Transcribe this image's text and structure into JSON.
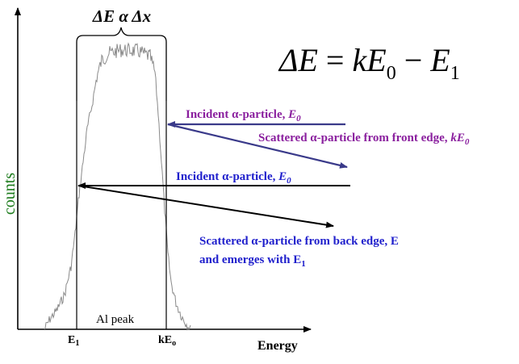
{
  "figure": {
    "bracket_label": "ΔE α Δx",
    "equation": {
      "lhs": "ΔE",
      "k": "k",
      "E": "E",
      "sub0": "0",
      "minus": "−",
      "sub1": "1"
    },
    "y_axis_label": "counts",
    "x_axis_label": "Energy",
    "peak_label": "Al peak",
    "tick_labels": {
      "e1": "E",
      "e1_sub": "1",
      "ke0": "kE",
      "ke0_sub": "o"
    },
    "annotations": {
      "incident_front": {
        "text": "Incident α-particle, ",
        "italic": "E",
        "sub": "0"
      },
      "scattered_front": {
        "text": "Scattered α-particle from front edge, ",
        "italic": "kE",
        "sub": "0"
      },
      "incident_back": {
        "text": "Incident α-particle, ",
        "italic": "E",
        "sub": "0"
      },
      "scattered_back_line1": "Scattered α-particle from back edge, E",
      "scattered_back_line2": {
        "text": "and emerges with E",
        "sub": "1"
      }
    },
    "colors": {
      "y_label": "#1a7a1a",
      "purple": "#8a1f9e",
      "blue": "#1f1fcc",
      "arrow_blue": "#3a3a8a",
      "black": "#000000",
      "spectrum": "#8a8a8a"
    }
  }
}
